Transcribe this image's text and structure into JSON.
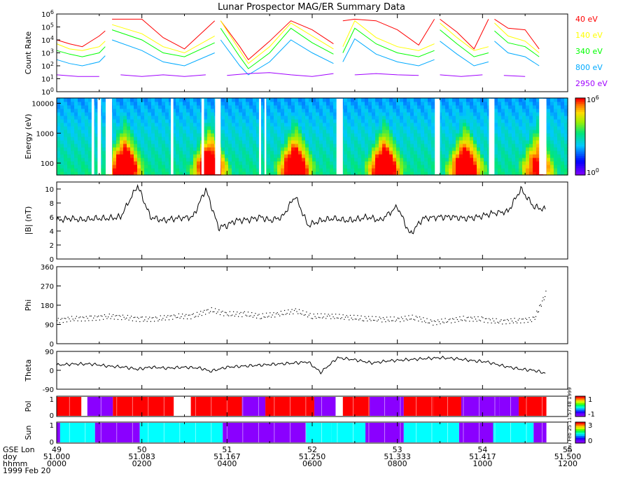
{
  "title": "Lunar Prospector MAG/ER Summary Data",
  "date_label": "1999 Feb 20",
  "side_stamp": "Thu Feb 25 11:57:48 1999",
  "colors": {
    "40 eV": "#ff0000",
    "140 eV": "#ffff00",
    "340 eV": "#00ff00",
    "800 eV": "#00aaff",
    "2950 eV": "#a000ff",
    "pol_plus": "#ff0000",
    "pol_minus": "#8a00ff",
    "sun_lit": "#00ffff",
    "sun_dark": "#8a00ff"
  },
  "time_axis": {
    "row_labels": [
      "GSE Lon",
      "doy",
      "hhmm"
    ],
    "gse_lon": [
      "49",
      "50",
      "51",
      "52",
      "53",
      "54",
      "55"
    ],
    "doy": [
      "51.000",
      "51.083",
      "51.167",
      "51.250",
      "51.333",
      "51.417",
      "51.500"
    ],
    "hhmm": [
      "0000",
      "0200",
      "0400",
      "0600",
      "0800",
      "1000",
      "1200"
    ]
  },
  "chart_data": [
    {
      "type": "line",
      "ylabel": "Count Rate",
      "yscale": "log",
      "ylim": [
        1,
        1000000
      ],
      "yticks": [
        "10^0",
        "10^1",
        "10^2",
        "10^3",
        "10^4",
        "10^5",
        "10^6"
      ],
      "gaps_hours": [
        [
          1.15,
          1.3
        ],
        [
          3.72,
          3.85
        ],
        [
          6.57,
          6.72
        ],
        [
          8.88,
          9.0
        ],
        [
          10.15,
          10.28
        ],
        [
          11.33,
          11.5
        ]
      ],
      "series": [
        {
          "name": "40 eV",
          "x_hours": [
            0,
            0.3,
            0.6,
            1.0,
            1.14,
            1.3,
            2.0,
            2.5,
            3.0,
            3.71,
            3.85,
            4.3,
            4.5,
            5.0,
            5.5,
            6.0,
            6.5,
            6.72,
            7.0,
            7.5,
            8.0,
            8.5,
            8.87,
            9.0,
            9.4,
            9.8,
            10.14,
            10.28,
            10.6,
            11.0,
            11.33
          ],
          "y": [
            10000,
            5000,
            3000,
            20000,
            50000,
            400000,
            400000,
            15000,
            2000,
            300000,
            300000,
            3000,
            300,
            8000,
            300000,
            60000,
            5000,
            300000,
            400000,
            300000,
            60000,
            4000,
            400000,
            400000,
            40000,
            2000,
            400000,
            400000,
            80000,
            60000,
            2000
          ]
        },
        {
          "name": "140 eV",
          "x_hours": [
            0,
            0.3,
            0.6,
            1.0,
            1.14,
            1.3,
            2.0,
            2.5,
            3.0,
            3.71,
            3.85,
            4.3,
            4.5,
            5.0,
            5.5,
            6.0,
            6.5,
            6.72,
            7.0,
            7.5,
            8.0,
            8.5,
            8.87,
            9.0,
            9.4,
            9.8,
            10.14,
            10.28,
            10.6,
            11.0,
            11.33
          ],
          "y": [
            5000,
            2000,
            1500,
            3000,
            8000,
            150000,
            30000,
            3000,
            1000,
            20000,
            300000,
            1500,
            150,
            3000,
            200000,
            20000,
            2000,
            3000,
            300000,
            15000,
            3000,
            1500,
            5000,
            200000,
            15000,
            1500,
            3000,
            200000,
            20000,
            8000,
            1000
          ]
        },
        {
          "name": "340 eV",
          "x_hours": [
            0,
            0.3,
            0.6,
            1.0,
            1.14,
            1.3,
            2.0,
            2.5,
            3.0,
            3.71,
            3.85,
            4.3,
            4.5,
            5.0,
            5.5,
            6.0,
            6.5,
            6.72,
            7.0,
            7.5,
            8.0,
            8.5,
            8.87,
            9.0,
            9.4,
            9.8,
            10.14,
            10.28,
            10.6,
            11.0,
            11.33
          ],
          "y": [
            1500,
            800,
            500,
            1000,
            3000,
            60000,
            10000,
            1000,
            500,
            6000,
            80000,
            500,
            60,
            1000,
            80000,
            6000,
            800,
            1000,
            80000,
            5000,
            1000,
            500,
            1500,
            60000,
            5000,
            500,
            1000,
            50000,
            6000,
            3000,
            500
          ]
        },
        {
          "name": "800 eV",
          "x_hours": [
            0,
            0.3,
            0.6,
            1.0,
            1.14,
            1.3,
            2.0,
            2.5,
            3.0,
            3.71,
            3.85,
            4.3,
            4.5,
            5.0,
            5.5,
            6.0,
            6.5,
            6.72,
            7.0,
            7.5,
            8.0,
            8.5,
            8.87,
            9.0,
            9.4,
            9.8,
            10.14,
            10.28,
            10.6,
            11.0,
            11.33
          ],
          "y": [
            300,
            150,
            100,
            200,
            600,
            10000,
            1500,
            200,
            100,
            1000,
            10000,
            100,
            20,
            200,
            10000,
            1000,
            150,
            200,
            12000,
            800,
            200,
            100,
            300,
            8000,
            800,
            100,
            200,
            8000,
            1000,
            500,
            100
          ]
        },
        {
          "name": "2950 eV",
          "x_hours": [
            0,
            0.5,
            1.0,
            1.5,
            2.0,
            2.5,
            3.0,
            3.5,
            4.0,
            4.5,
            5.0,
            5.5,
            6.0,
            6.5,
            7.0,
            7.5,
            8.0,
            8.5,
            9.0,
            9.5,
            10.0,
            10.5,
            11.0
          ],
          "y": [
            20,
            15,
            15,
            20,
            15,
            20,
            15,
            20,
            18,
            25,
            30,
            20,
            15,
            25,
            20,
            25,
            20,
            18,
            20,
            15,
            20,
            18,
            15
          ]
        }
      ]
    },
    {
      "type": "heatmap",
      "ylabel": "Energy (eV)",
      "yscale": "log",
      "ylim": [
        40,
        15000
      ],
      "yticks": [
        "100",
        "1000",
        "10000"
      ],
      "colorbar": {
        "scale": "log",
        "range": [
          1,
          1000000
        ],
        "labels": [
          "10^0",
          "10^6"
        ]
      },
      "peaks": [
        {
          "time_hours": 1.6,
          "energy_ev": 60,
          "log_count": 5.5
        },
        {
          "time_hours": 3.6,
          "energy_ev": 60,
          "log_count": 5.5
        },
        {
          "time_hours": 5.6,
          "energy_ev": 60,
          "log_count": 5.5
        },
        {
          "time_hours": 7.7,
          "energy_ev": 60,
          "log_count": 5.5
        },
        {
          "time_hours": 9.6,
          "energy_ev": 60,
          "log_count": 5.5
        },
        {
          "time_hours": 11.3,
          "energy_ev": 60,
          "log_count": 4.5
        }
      ],
      "gaps_hours": [
        [
          0.82,
          0.88
        ],
        [
          0.96,
          1.04
        ],
        [
          1.15,
          1.3
        ],
        [
          2.68,
          2.74
        ],
        [
          3.4,
          3.46
        ],
        [
          3.72,
          3.85
        ],
        [
          4.75,
          4.8
        ],
        [
          4.88,
          4.92
        ],
        [
          6.57,
          6.72
        ],
        [
          8.88,
          9.0
        ],
        [
          10.15,
          10.28
        ],
        [
          11.33,
          11.5
        ]
      ]
    },
    {
      "type": "line",
      "ylabel": "|B| (nT)",
      "ylim": [
        0,
        11
      ],
      "yticks": [
        "0",
        "2",
        "4",
        "6",
        "8",
        "10"
      ],
      "x_hours": [
        0,
        0.3,
        0.6,
        0.9,
        1.2,
        1.5,
        1.9,
        2.2,
        2.5,
        2.8,
        3.2,
        3.5,
        3.8,
        4.0,
        4.2,
        4.5,
        4.8,
        5.0,
        5.3,
        5.6,
        5.9,
        6.2,
        6.5,
        6.8,
        7.0,
        7.3,
        7.6,
        8.0,
        8.3,
        8.6,
        9.0,
        9.3,
        9.6,
        9.9,
        10.2,
        10.6,
        10.9,
        11.2,
        11.5
      ],
      "y": [
        5.5,
        5.8,
        5.6,
        5.8,
        5.8,
        6.0,
        10.5,
        6.0,
        5.5,
        5.8,
        6.0,
        10.0,
        4.5,
        4.8,
        5.5,
        5.6,
        6.0,
        5.5,
        6.0,
        9.0,
        4.8,
        5.5,
        5.8,
        5.5,
        5.6,
        6.0,
        5.5,
        7.5,
        3.5,
        5.8,
        6.0,
        6.0,
        5.8,
        6.0,
        6.5,
        6.8,
        10.0,
        7.5,
        7.0
      ]
    },
    {
      "type": "scatter",
      "ylabel": "Phi",
      "ylim": [
        0,
        360
      ],
      "yticks": [
        "0",
        "90",
        "180",
        "270",
        "360"
      ],
      "x_hours": [
        0,
        0.4,
        0.8,
        1.2,
        1.6,
        2.0,
        2.4,
        2.8,
        3.2,
        3.6,
        4.0,
        4.4,
        4.8,
        5.2,
        5.6,
        6.0,
        6.4,
        6.8,
        7.2,
        7.6,
        8.0,
        8.4,
        8.8,
        9.2,
        9.6,
        10.0,
        10.4,
        10.8,
        11.2,
        11.5
      ],
      "y": [
        110,
        120,
        120,
        130,
        125,
        115,
        120,
        130,
        130,
        160,
        140,
        140,
        130,
        140,
        155,
        130,
        130,
        125,
        120,
        115,
        115,
        125,
        100,
        110,
        120,
        115,
        105,
        110,
        115,
        245
      ]
    },
    {
      "type": "line",
      "ylabel": "Theta",
      "ylim": [
        -90,
        90
      ],
      "yticks": [
        "-90",
        "0",
        "90"
      ],
      "x_hours": [
        0,
        0.4,
        0.8,
        1.2,
        1.6,
        1.9,
        2.2,
        2.6,
        3.0,
        3.4,
        3.6,
        4.0,
        4.4,
        4.8,
        5.2,
        5.6,
        5.9,
        6.2,
        6.6,
        7.0,
        7.4,
        7.8,
        8.2,
        8.6,
        9.0,
        9.4,
        9.8,
        10.1,
        10.5,
        10.9,
        11.2,
        11.5
      ],
      "y": [
        25,
        30,
        30,
        20,
        15,
        5,
        15,
        10,
        15,
        10,
        -5,
        15,
        20,
        25,
        30,
        35,
        40,
        -10,
        60,
        50,
        35,
        45,
        50,
        55,
        60,
        55,
        45,
        40,
        20,
        5,
        0,
        -15
      ]
    },
    {
      "type": "heatmap",
      "ylabel": "Pol",
      "yticks": [
        "0",
        "1"
      ],
      "colorbar": {
        "range": [
          -1,
          1
        ],
        "labels": [
          "1",
          "-1"
        ]
      },
      "segments": [
        {
          "start_hours": 0.0,
          "end_hours": 0.58,
          "value": 1
        },
        {
          "start_hours": 0.58,
          "end_hours": 0.72,
          "value": 0
        },
        {
          "start_hours": 0.72,
          "end_hours": 1.32,
          "value": -1
        },
        {
          "start_hours": 1.32,
          "end_hours": 2.75,
          "value": 1
        },
        {
          "start_hours": 2.75,
          "end_hours": 3.15,
          "value": 0
        },
        {
          "start_hours": 3.15,
          "end_hours": 4.35,
          "value": 1
        },
        {
          "start_hours": 4.35,
          "end_hours": 4.9,
          "value": -1
        },
        {
          "start_hours": 4.9,
          "end_hours": 6.05,
          "value": 1
        },
        {
          "start_hours": 6.05,
          "end_hours": 6.55,
          "value": -1
        },
        {
          "start_hours": 6.55,
          "end_hours": 6.72,
          "value": 0
        },
        {
          "start_hours": 6.72,
          "end_hours": 7.35,
          "value": 1
        },
        {
          "start_hours": 7.35,
          "end_hours": 8.15,
          "value": -1
        },
        {
          "start_hours": 8.15,
          "end_hours": 8.85,
          "value": 1
        },
        {
          "start_hours": 8.85,
          "end_hours": 9.5,
          "value": 1
        },
        {
          "start_hours": 9.5,
          "end_hours": 10.4,
          "value": -1
        },
        {
          "start_hours": 10.4,
          "end_hours": 10.85,
          "value": -1
        },
        {
          "start_hours": 10.85,
          "end_hours": 11.5,
          "value": 1
        }
      ]
    },
    {
      "type": "heatmap",
      "ylabel": "Sun",
      "yticks": [
        "0",
        "1"
      ],
      "colorbar": {
        "range": [
          0,
          3
        ],
        "labels": [
          "3",
          "0"
        ]
      },
      "segments": [
        {
          "start_hours": 0.0,
          "end_hours": 0.08,
          "value": 2
        },
        {
          "start_hours": 0.08,
          "end_hours": 0.9,
          "value": 3
        },
        {
          "start_hours": 0.9,
          "end_hours": 1.95,
          "value": 2
        },
        {
          "start_hours": 1.95,
          "end_hours": 3.9,
          "value": 3
        },
        {
          "start_hours": 3.9,
          "end_hours": 5.85,
          "value": 2
        },
        {
          "start_hours": 5.85,
          "end_hours": 6.45,
          "value": 3
        },
        {
          "start_hours": 6.45,
          "end_hours": 7.25,
          "value": 3
        },
        {
          "start_hours": 7.25,
          "end_hours": 8.15,
          "value": 2
        },
        {
          "start_hours": 8.15,
          "end_hours": 9.45,
          "value": 3
        },
        {
          "start_hours": 9.45,
          "end_hours": 10.25,
          "value": 2
        },
        {
          "start_hours": 10.25,
          "end_hours": 11.2,
          "value": 3
        },
        {
          "start_hours": 11.2,
          "end_hours": 11.5,
          "value": 2
        }
      ]
    }
  ]
}
